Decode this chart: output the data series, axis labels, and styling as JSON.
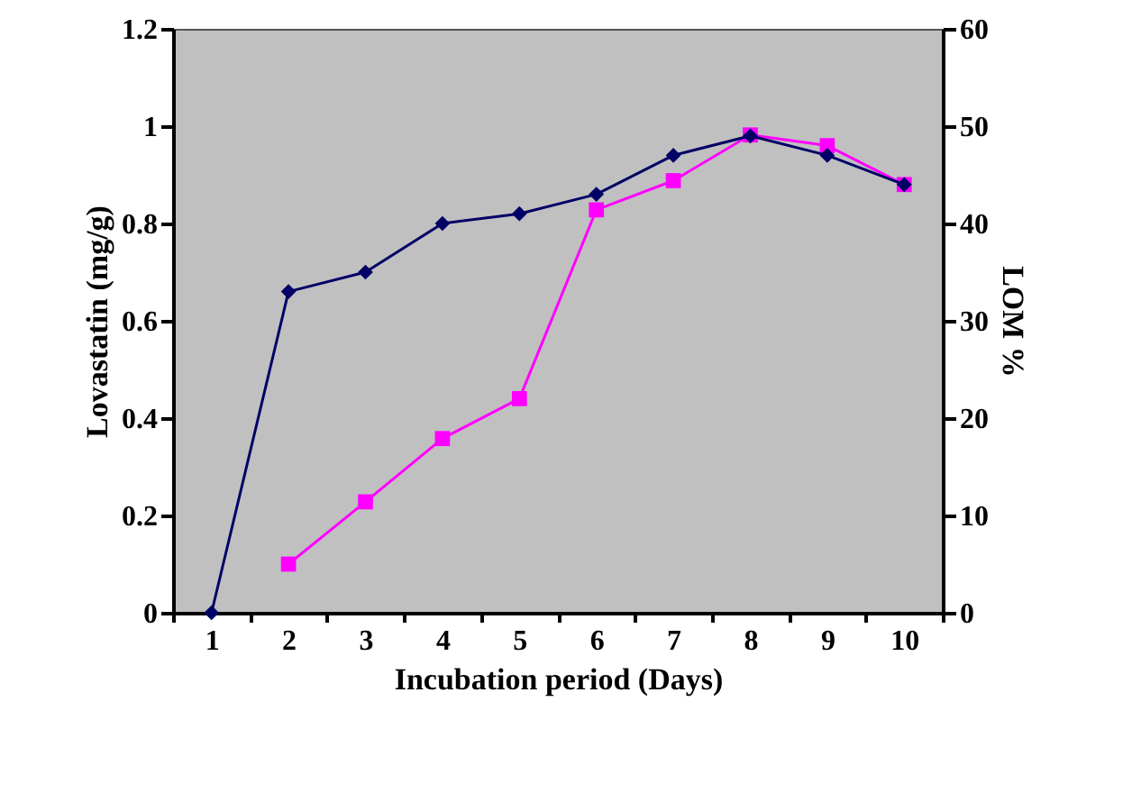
{
  "chart_data": {
    "type": "line",
    "xlabel": "Incubation period (Days)",
    "ylabel": "Lovastatin (mg/g)",
    "y2label": "LOM %",
    "categories": [
      "1",
      "2",
      "3",
      "4",
      "5",
      "6",
      "7",
      "8",
      "9",
      "10"
    ],
    "series": [
      {
        "color": "#000066",
        "marker": "diamond",
        "values": [
          0,
          0.66,
          0.7,
          0.8,
          0.82,
          0.86,
          0.94,
          0.98,
          0.94,
          0.88
        ]
      },
      {
        "color": "#ff00ff",
        "marker": "square",
        "axis": "y2",
        "values": [
          null,
          5,
          11.4,
          17.9,
          22,
          41.4,
          44.4,
          49.1,
          48,
          44
        ]
      }
    ],
    "ylim": [
      0,
      1.2
    ],
    "yticks": [
      0,
      0.2,
      0.4,
      0.6,
      0.8,
      1,
      1.2
    ],
    "y2lim": [
      0,
      60
    ],
    "y2ticks": [
      0,
      10,
      20,
      30,
      40,
      50,
      60
    ],
    "grid": false,
    "line_style": "solid"
  }
}
